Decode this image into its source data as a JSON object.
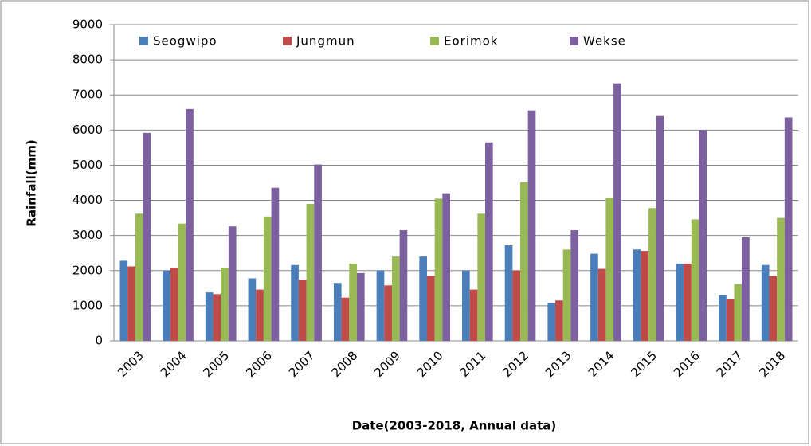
{
  "chart_data": {
    "type": "bar",
    "y_label": "Rainfall(mm)",
    "x_label": "Date(2003-2018, Annual data)",
    "categories": [
      "2003",
      "2004",
      "2005",
      "2006",
      "2007",
      "2008",
      "2009",
      "2010",
      "2011",
      "2012",
      "2013",
      "2014",
      "2015",
      "2016",
      "2017",
      "2018"
    ],
    "series": [
      {
        "name": "Seogwipo",
        "color": "#4a7ebb",
        "values": [
          2280,
          2000,
          1380,
          1780,
          2160,
          1650,
          2000,
          2400,
          2000,
          2720,
          1080,
          2480,
          2600,
          2200,
          1300,
          2160
        ]
      },
      {
        "name": "Jungmun",
        "color": "#be4b48",
        "values": [
          2120,
          2080,
          1330,
          1460,
          1740,
          1230,
          1580,
          1850,
          1460,
          2000,
          1150,
          2050,
          2560,
          2200,
          1180,
          1850
        ]
      },
      {
        "name": "Eorimok",
        "color": "#98b954",
        "values": [
          3620,
          3340,
          2080,
          3540,
          3900,
          2200,
          2400,
          4050,
          3620,
          4520,
          2600,
          4080,
          3780,
          3460,
          1620,
          3500
        ]
      },
      {
        "name": "Wekse",
        "color": "#7d60a0",
        "values": [
          5920,
          6600,
          3260,
          4360,
          5020,
          1930,
          3150,
          4200,
          5650,
          6560,
          3150,
          7330,
          6400,
          6000,
          2950,
          6360
        ]
      }
    ],
    "ylim": [
      0,
      9000
    ],
    "yticks": [
      0,
      1000,
      2000,
      3000,
      4000,
      5000,
      6000,
      7000,
      8000,
      9000
    ],
    "grid": true,
    "legend": "top"
  }
}
